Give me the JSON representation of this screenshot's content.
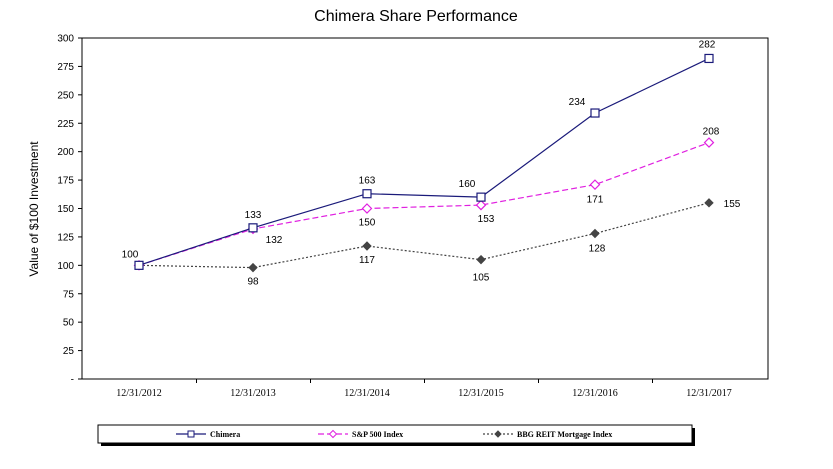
{
  "chart_data": {
    "type": "line",
    "title": "Chimera Share Performance",
    "ylabel": "Value of $100 Investment",
    "xlabel": "",
    "ylim": [
      0,
      300
    ],
    "y_ticks": [
      0,
      25,
      50,
      75,
      100,
      125,
      150,
      175,
      200,
      225,
      250,
      275,
      300
    ],
    "y_tick_labels": [
      "-",
      "25",
      "50",
      "75",
      "100",
      "125",
      "150",
      "175",
      "200",
      "225",
      "250",
      "275",
      "300"
    ],
    "categories": [
      "12/31/2012",
      "12/31/2013",
      "12/31/2014",
      "12/31/2015",
      "12/31/2016",
      "12/31/2017"
    ],
    "series": [
      {
        "name": "Chimera",
        "values": [
          100,
          133,
          163,
          160,
          234,
          282
        ],
        "labels": [
          "100",
          "133",
          "163",
          "160",
          "234",
          "282"
        ],
        "color": "#1a1a7a",
        "dash": "",
        "marker": "square"
      },
      {
        "name": "S&P 500 Index",
        "values": [
          100,
          132,
          150,
          153,
          171,
          208
        ],
        "labels": [
          "",
          "132",
          "150",
          "153",
          "171",
          "208"
        ],
        "color": "#e020e0",
        "dash": "6,3",
        "marker": "diamond-open"
      },
      {
        "name": "BBG REIT Mortgage Index",
        "values": [
          100,
          98,
          117,
          105,
          128,
          155
        ],
        "labels": [
          "",
          "98",
          "117",
          "105",
          "128",
          "155"
        ],
        "color": "#444444",
        "dash": "2,2",
        "marker": "diamond-filled"
      }
    ],
    "legend_position": "bottom",
    "grid": false
  }
}
